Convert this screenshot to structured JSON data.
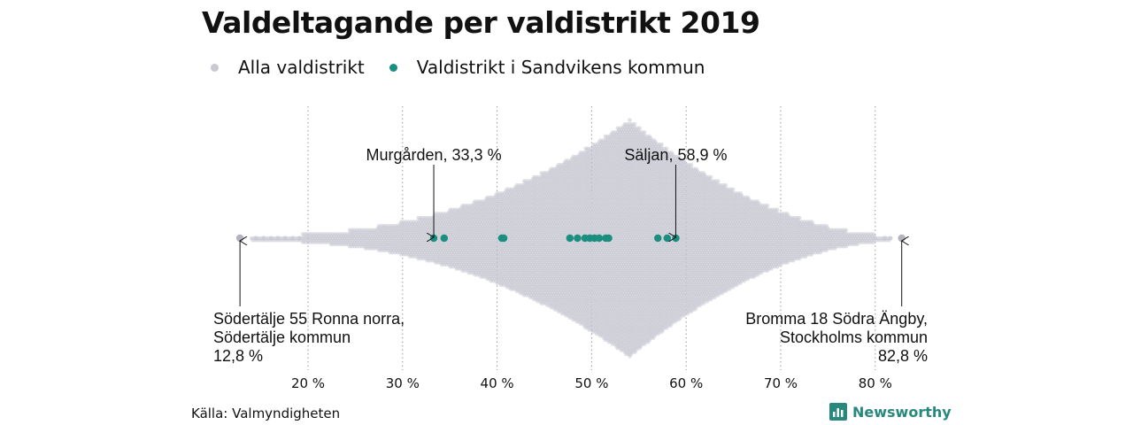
{
  "title": "Valdeltagande per valdistrikt 2019",
  "legend": [
    {
      "label": "Alla valdistrikt",
      "color": "#c9c9d3"
    },
    {
      "label": "Valdistrikt i Sandvikens kommun",
      "color": "#1a8f80"
    }
  ],
  "source": "Källa: Valmyndigheten",
  "brand": "Newsworthy",
  "chart_data": {
    "type": "scatter",
    "subtype": "beeswarm",
    "xlim": [
      10,
      85
    ],
    "x_ticks": [
      20,
      30,
      40,
      50,
      60,
      70,
      80
    ],
    "x_tick_labels": [
      "20 %",
      "30 %",
      "40 %",
      "50 %",
      "60 %",
      "70 %",
      "80 %"
    ],
    "grid": "vertical dotted",
    "series": [
      {
        "name": "Alla valdistrikt",
        "color": "#c9c9d3",
        "min": 12.8,
        "max": 82.8,
        "peak": 54
      },
      {
        "name": "Valdistrikt i Sandvikens kommun",
        "color": "#1a8f80",
        "values": [
          33.3,
          34.4,
          40.5,
          40.7,
          47.7,
          48.5,
          49.3,
          49.8,
          50.3,
          50.8,
          51.5,
          51.8,
          57.0,
          58.0,
          58.9
        ]
      }
    ],
    "annotations": [
      {
        "lines": [
          "Murgården, 33,3 %"
        ],
        "x": 33.3,
        "align": "center",
        "position": "above"
      },
      {
        "lines": [
          "Säljan, 58,9 %"
        ],
        "x": 58.9,
        "align": "center",
        "position": "above"
      },
      {
        "lines": [
          "Södertälje 55 Ronna norra,",
          "Södertälje kommun",
          "12,8 %"
        ],
        "x": 12.8,
        "align": "left",
        "position": "below"
      },
      {
        "lines": [
          "Bromma 18 Södra Ängby,",
          "Stockholms kommun",
          "82,8 %"
        ],
        "x": 82.8,
        "align": "right",
        "position": "below"
      }
    ]
  }
}
